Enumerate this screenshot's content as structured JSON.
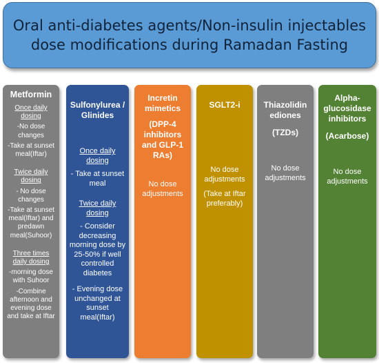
{
  "banner": {
    "title": "Oral anti-diabetes agents/Non-insulin injectables dose modifications during Ramadan Fasting"
  },
  "colors": {
    "banner": "#5b9bd5",
    "metformin": "#7f7f7f",
    "sulfonylurea": "#2f5597",
    "incretin": "#ed7d31",
    "sglt2": "#bf9000",
    "tzd": "#7f7f7f",
    "alpha": "#548235"
  },
  "columns": {
    "metformin": {
      "title": "Metformin",
      "once_heading": "Once daily dosing",
      "once_1": "-No dose changes",
      "once_2": "-Take at sunset meal(Iftar)",
      "twice_heading": "Twice daily dosing",
      "twice_1": "- No dose changes",
      "twice_2": "-Take at sunset meal(Iftar) and predawn meal(Suhoor)",
      "three_heading": "Three times daily dosing",
      "three_1": "-morning dose with Suhoor",
      "three_2": "-Combine afternoon and evening dose and take at Iftar"
    },
    "sulfonylurea": {
      "title": "Sulfonylurea / Glinides",
      "once_heading": "Once daily dosing",
      "once_1": "- Take at sunset meal",
      "twice_heading": "Twice daily dosing",
      "twice_1": "- Consider decreasing morning dose by 25-50% if well controlled diabetes",
      "twice_2": "- Evening dose unchanged at sunset meal(Iftar)"
    },
    "incretin": {
      "title": "Incretin mimetics",
      "subtitle": "(DPP-4 inhibitors and GLP-1 RAs)",
      "note": "No dose adjustments"
    },
    "sglt2": {
      "title": "SGLT2-i",
      "note": "No dose adjustments",
      "note2": "(Take at Iftar preferably)"
    },
    "tzd": {
      "title": "Thiazolidin ediones",
      "subtitle": "(TZDs)",
      "note": "No dose adjustments"
    },
    "alpha": {
      "title": "Alpha-glucosidase inhibitors",
      "subtitle": "(Acarbose)",
      "note": "No dose adjustments"
    }
  }
}
